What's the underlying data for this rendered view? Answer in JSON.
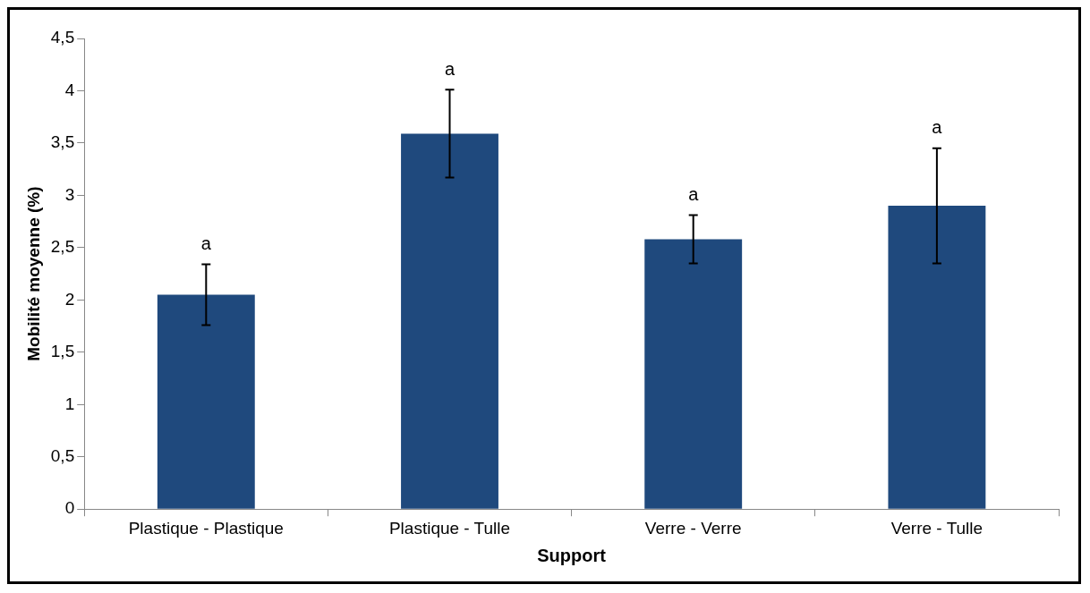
{
  "chart_data": {
    "type": "bar",
    "xlabel": "Support",
    "ylabel": "Mobilité moyenne (%)",
    "categories": [
      "Plastique - Plastique",
      "Plastique - Tulle",
      "Verre - Verre",
      "Verre - Tulle"
    ],
    "values": [
      2.05,
      3.59,
      2.58,
      2.9
    ],
    "errors": [
      0.29,
      0.42,
      0.23,
      0.55
    ],
    "color": "#1f497d",
    "ylim": [
      0,
      4.5
    ],
    "yticks": [
      {
        "value": 0,
        "label": "0"
      },
      {
        "value": 0.5,
        "label": "0,5"
      },
      {
        "value": 1,
        "label": "1"
      },
      {
        "value": 1.5,
        "label": "1,5"
      },
      {
        "value": 2,
        "label": "2"
      },
      {
        "value": 2.5,
        "label": "2,5"
      },
      {
        "value": 3,
        "label": "3"
      },
      {
        "value": 3.5,
        "label": "3,5"
      },
      {
        "value": 4,
        "label": "4"
      },
      {
        "value": 4.5,
        "label": "4,5"
      }
    ],
    "grid": false,
    "legend": false,
    "annotations": [
      "a",
      "a",
      "a",
      "a"
    ]
  }
}
